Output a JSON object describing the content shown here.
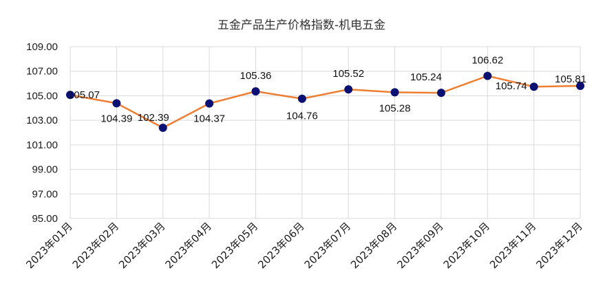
{
  "chart_data": {
    "type": "line",
    "title": "五金产品生产价格指数-机电五金",
    "categories": [
      "2023年01月",
      "2023年02月",
      "2023年03月",
      "2023年04月",
      "2023年05月",
      "2023年06月",
      "2023年07月",
      "2023年08月",
      "2023年09月",
      "2023年10月",
      "2023年11月",
      "2023年12月"
    ],
    "series": [
      {
        "values": [
          105.07,
          104.39,
          102.39,
          104.37,
          105.36,
          104.76,
          105.52,
          105.28,
          105.24,
          106.62,
          105.74,
          105.81
        ]
      }
    ],
    "data_labels": [
      "105.07",
      "104.39",
      "102.39",
      "104.37",
      "105.36",
      "104.76",
      "105.52",
      "105.28",
      "105.24",
      "106.62",
      "105.74",
      "105.81"
    ],
    "yticks": [
      "95.00",
      "97.00",
      "99.00",
      "101.00",
      "103.00",
      "105.00",
      "107.00",
      "109.00"
    ],
    "ylim": [
      95,
      109
    ],
    "grid": true,
    "colors": {
      "line": "#ED7D31",
      "marker": "#0A1172",
      "grid": "#D9D9D9"
    }
  }
}
